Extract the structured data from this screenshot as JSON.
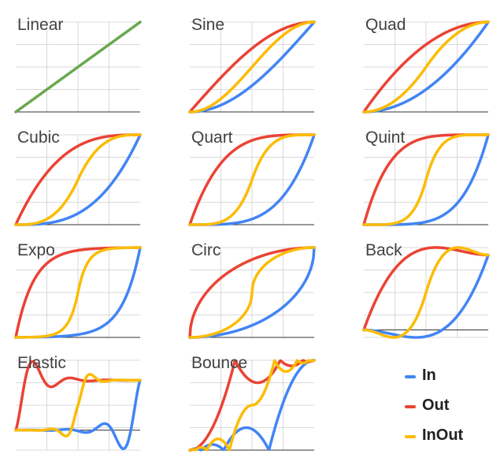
{
  "colors": {
    "in": "#4285f4",
    "out": "#ea4335",
    "inout": "#fbbc04",
    "linear": "#6aa84f",
    "grid": "#d9d9d9",
    "axis": "#333333",
    "title": "#424242"
  },
  "legend": [
    {
      "key": "in",
      "label": "In"
    },
    {
      "key": "out",
      "label": "Out"
    },
    {
      "key": "inout",
      "label": "InOut"
    }
  ],
  "chart_data": [
    {
      "type": "line",
      "title": "Linear",
      "xlim": [
        0,
        1
      ],
      "ylim": [
        0,
        1
      ],
      "grid": true,
      "series": [
        {
          "key": "linear",
          "easing": "linear",
          "x": [
            0,
            0.25,
            0.5,
            0.75,
            1
          ],
          "y": [
            0,
            0.25,
            0.5,
            0.75,
            1
          ]
        }
      ]
    },
    {
      "type": "line",
      "title": "Sine",
      "xlim": [
        0,
        1
      ],
      "ylim": [
        0,
        1
      ],
      "grid": true,
      "series": [
        {
          "key": "in",
          "easing": "sineIn",
          "x": [
            0,
            0.25,
            0.5,
            0.75,
            1
          ],
          "y": [
            0,
            0.08,
            0.29,
            0.62,
            1
          ]
        },
        {
          "key": "out",
          "easing": "sineOut",
          "x": [
            0,
            0.25,
            0.5,
            0.75,
            1
          ],
          "y": [
            0,
            0.38,
            0.71,
            0.92,
            1
          ]
        },
        {
          "key": "inout",
          "easing": "sineInOut",
          "x": [
            0,
            0.25,
            0.5,
            0.75,
            1
          ],
          "y": [
            0,
            0.15,
            0.5,
            0.85,
            1
          ]
        }
      ]
    },
    {
      "type": "line",
      "title": "Quad",
      "xlim": [
        0,
        1
      ],
      "ylim": [
        0,
        1
      ],
      "grid": true,
      "series": [
        {
          "key": "in",
          "easing": "quadIn",
          "x": [
            0,
            0.25,
            0.5,
            0.75,
            1
          ],
          "y": [
            0,
            0.06,
            0.25,
            0.56,
            1
          ]
        },
        {
          "key": "out",
          "easing": "quadOut",
          "x": [
            0,
            0.25,
            0.5,
            0.75,
            1
          ],
          "y": [
            0,
            0.44,
            0.75,
            0.94,
            1
          ]
        },
        {
          "key": "inout",
          "easing": "quadInOut",
          "x": [
            0,
            0.25,
            0.5,
            0.75,
            1
          ],
          "y": [
            0,
            0.13,
            0.5,
            0.88,
            1
          ]
        }
      ]
    },
    {
      "type": "line",
      "title": "Cubic",
      "xlim": [
        0,
        1
      ],
      "ylim": [
        0,
        1
      ],
      "grid": true,
      "series": [
        {
          "key": "in",
          "easing": "cubicIn",
          "x": [
            0,
            0.25,
            0.5,
            0.75,
            1
          ],
          "y": [
            0,
            0.02,
            0.13,
            0.42,
            1
          ]
        },
        {
          "key": "out",
          "easing": "cubicOut",
          "x": [
            0,
            0.25,
            0.5,
            0.75,
            1
          ],
          "y": [
            0,
            0.58,
            0.88,
            0.98,
            1
          ]
        },
        {
          "key": "inout",
          "easing": "cubicInOut",
          "x": [
            0,
            0.25,
            0.5,
            0.75,
            1
          ],
          "y": [
            0,
            0.06,
            0.5,
            0.94,
            1
          ]
        }
      ]
    },
    {
      "type": "line",
      "title": "Quart",
      "xlim": [
        0,
        1
      ],
      "ylim": [
        0,
        1
      ],
      "grid": true,
      "series": [
        {
          "key": "in",
          "easing": "quartIn",
          "x": [
            0,
            0.25,
            0.5,
            0.75,
            1
          ],
          "y": [
            0,
            0.004,
            0.06,
            0.32,
            1
          ]
        },
        {
          "key": "out",
          "easing": "quartOut",
          "x": [
            0,
            0.25,
            0.5,
            0.75,
            1
          ],
          "y": [
            0,
            0.68,
            0.94,
            1.0,
            1
          ]
        },
        {
          "key": "inout",
          "easing": "quartInOut",
          "x": [
            0,
            0.25,
            0.5,
            0.75,
            1
          ],
          "y": [
            0,
            0.03,
            0.5,
            0.97,
            1
          ]
        }
      ]
    },
    {
      "type": "line",
      "title": "Quint",
      "xlim": [
        0,
        1
      ],
      "ylim": [
        0,
        1
      ],
      "grid": true,
      "series": [
        {
          "key": "in",
          "easing": "quintIn",
          "x": [
            0,
            0.25,
            0.5,
            0.75,
            1
          ],
          "y": [
            0,
            0.001,
            0.03,
            0.24,
            1
          ]
        },
        {
          "key": "out",
          "easing": "quintOut",
          "x": [
            0,
            0.25,
            0.5,
            0.75,
            1
          ],
          "y": [
            0,
            0.76,
            0.97,
            1.0,
            1
          ]
        },
        {
          "key": "inout",
          "easing": "quintInOut",
          "x": [
            0,
            0.25,
            0.5,
            0.75,
            1
          ],
          "y": [
            0,
            0.02,
            0.5,
            0.98,
            1
          ]
        }
      ]
    },
    {
      "type": "line",
      "title": "Expo",
      "xlim": [
        0,
        1
      ],
      "ylim": [
        0,
        1
      ],
      "grid": true,
      "series": [
        {
          "key": "in",
          "easing": "expoIn",
          "x": [
            0,
            0.25,
            0.5,
            0.75,
            1
          ],
          "y": [
            0,
            0.006,
            0.03,
            0.18,
            1
          ]
        },
        {
          "key": "out",
          "easing": "expoOut",
          "x": [
            0,
            0.25,
            0.5,
            0.75,
            1
          ],
          "y": [
            0,
            0.82,
            0.97,
            0.99,
            1
          ]
        },
        {
          "key": "inout",
          "easing": "expoInOut",
          "x": [
            0,
            0.25,
            0.5,
            0.75,
            1
          ],
          "y": [
            0,
            0.02,
            0.5,
            0.98,
            1
          ]
        }
      ]
    },
    {
      "type": "line",
      "title": "Circ",
      "xlim": [
        0,
        1
      ],
      "ylim": [
        0,
        1
      ],
      "grid": true,
      "series": [
        {
          "key": "in",
          "easing": "circIn",
          "x": [
            0,
            0.25,
            0.5,
            0.75,
            1
          ],
          "y": [
            0,
            0.03,
            0.13,
            0.34,
            1
          ]
        },
        {
          "key": "out",
          "easing": "circOut",
          "x": [
            0,
            0.25,
            0.5,
            0.75,
            1
          ],
          "y": [
            0,
            0.66,
            0.87,
            0.97,
            1
          ]
        },
        {
          "key": "inout",
          "easing": "circInOut",
          "x": [
            0,
            0.25,
            0.5,
            0.75,
            1
          ],
          "y": [
            0,
            0.07,
            0.5,
            0.93,
            1
          ]
        }
      ]
    },
    {
      "type": "line",
      "title": "Back",
      "xlim": [
        0,
        1
      ],
      "ylim": [
        -0.1,
        1.1
      ],
      "grid": true,
      "series": [
        {
          "key": "in",
          "easing": "backIn",
          "x": [
            0,
            0.25,
            0.5,
            0.75,
            1
          ],
          "y": [
            0,
            -0.06,
            -0.09,
            0.18,
            1
          ]
        },
        {
          "key": "out",
          "easing": "backOut",
          "x": [
            0,
            0.25,
            0.5,
            0.75,
            1
          ],
          "y": [
            0,
            0.82,
            1.09,
            1.06,
            1
          ]
        },
        {
          "key": "inout",
          "easing": "backInOut",
          "x": [
            0,
            0.25,
            0.5,
            0.75,
            1
          ],
          "y": [
            0,
            -0.1,
            0.5,
            1.1,
            1
          ]
        }
      ]
    },
    {
      "type": "line",
      "title": "Elastic",
      "xlim": [
        0,
        1
      ],
      "ylim": [
        -0.4,
        1.4
      ],
      "grid": true,
      "series": [
        {
          "key": "in",
          "easing": "elasticIn",
          "x": [
            0,
            0.25,
            0.5,
            0.75,
            1
          ],
          "y": [
            0,
            0.0,
            -0.02,
            0.0,
            1
          ]
        },
        {
          "key": "out",
          "easing": "elasticOut",
          "x": [
            0,
            0.25,
            0.5,
            0.75,
            1
          ],
          "y": [
            0,
            1.0,
            1.02,
            1.0,
            1
          ]
        },
        {
          "key": "inout",
          "easing": "elasticInOut",
          "x": [
            0,
            0.25,
            0.5,
            0.75,
            1
          ],
          "y": [
            0,
            -0.01,
            0.5,
            1.01,
            1
          ]
        }
      ]
    },
    {
      "type": "line",
      "title": "Bounce",
      "xlim": [
        0,
        1
      ],
      "ylim": [
        0,
        1
      ],
      "grid": true,
      "series": [
        {
          "key": "in",
          "easing": "bounceIn",
          "x": [
            0,
            0.25,
            0.5,
            0.75,
            1
          ],
          "y": [
            0,
            0.03,
            0.23,
            0.53,
            1
          ]
        },
        {
          "key": "out",
          "easing": "bounceOut",
          "x": [
            0,
            0.25,
            0.5,
            0.75,
            1
          ],
          "y": [
            0,
            0.47,
            0.77,
            0.97,
            1
          ]
        },
        {
          "key": "inout",
          "easing": "bounceInOut",
          "x": [
            0,
            0.25,
            0.5,
            0.75,
            1
          ],
          "y": [
            0,
            0.12,
            0.5,
            0.88,
            1
          ]
        }
      ]
    }
  ]
}
